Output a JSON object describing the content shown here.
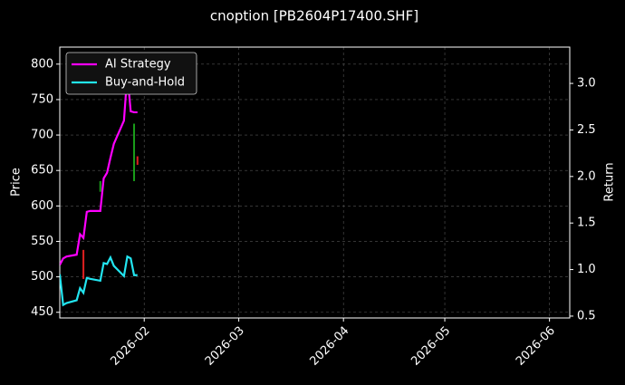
{
  "chart_data": {
    "type": "line",
    "title": "cnoption [PB2604P17400.SHF]",
    "ylabel": "Price",
    "y2label": "Return",
    "x": [
      "2026-01-07",
      "2026-01-08",
      "2026-01-09",
      "2026-01-12",
      "2026-01-13",
      "2026-01-14",
      "2026-01-15",
      "2026-01-16",
      "2026-01-19",
      "2026-01-20",
      "2026-01-21",
      "2026-01-22",
      "2026-01-23",
      "2026-01-26",
      "2026-01-27",
      "2026-01-28",
      "2026-01-29",
      "2026-01-30"
    ],
    "series": [
      {
        "name": "AI Strategy",
        "color": "#ff00ff",
        "axis": "y2",
        "values": [
          1.05,
          1.12,
          1.14,
          1.16,
          1.38,
          1.34,
          1.62,
          1.63,
          1.63,
          1.98,
          2.04,
          2.2,
          2.35,
          2.6,
          3.1,
          2.7,
          2.69,
          2.69
        ]
      },
      {
        "name": "Buy-and-Hold",
        "color": "#22e5f0",
        "axis": "y2",
        "values": [
          0.95,
          0.62,
          0.64,
          0.67,
          0.8,
          0.75,
          0.91,
          0.9,
          0.88,
          1.07,
          1.06,
          1.13,
          1.04,
          0.93,
          1.14,
          1.12,
          0.94,
          0.94
        ]
      }
    ],
    "candles": {
      "x": [
        "2026-01-14",
        "2026-01-19",
        "2026-01-29",
        "2026-01-30"
      ],
      "open": [
        538,
        620,
        635,
        670
      ],
      "close": [
        497,
        635,
        716,
        658
      ],
      "up_color": "#1a9e1a",
      "down_color": "#e02020"
    },
    "xlim": [
      "2026-01-07",
      "2026-06-07"
    ],
    "xticks": [
      {
        "value": "2026-02-01",
        "label": "2026-02"
      },
      {
        "value": "2026-03-01",
        "label": "2026-03"
      },
      {
        "value": "2026-04-01",
        "label": "2026-04"
      },
      {
        "value": "2026-05-01",
        "label": "2026-05"
      },
      {
        "value": "2026-06-01",
        "label": "2026-06"
      }
    ],
    "ylim": [
      442,
      824
    ],
    "yticks": [
      450,
      500,
      550,
      600,
      650,
      700,
      750,
      800
    ],
    "y2lim": [
      0.48,
      3.39
    ],
    "y2ticks": [
      0.5,
      {
        "value": 1,
        "label": "1.0"
      },
      1.5,
      {
        "value": 2,
        "label": "2.0"
      },
      2.5,
      {
        "value": 3,
        "label": "3.0"
      }
    ],
    "grid": true,
    "legend": "upper left"
  }
}
